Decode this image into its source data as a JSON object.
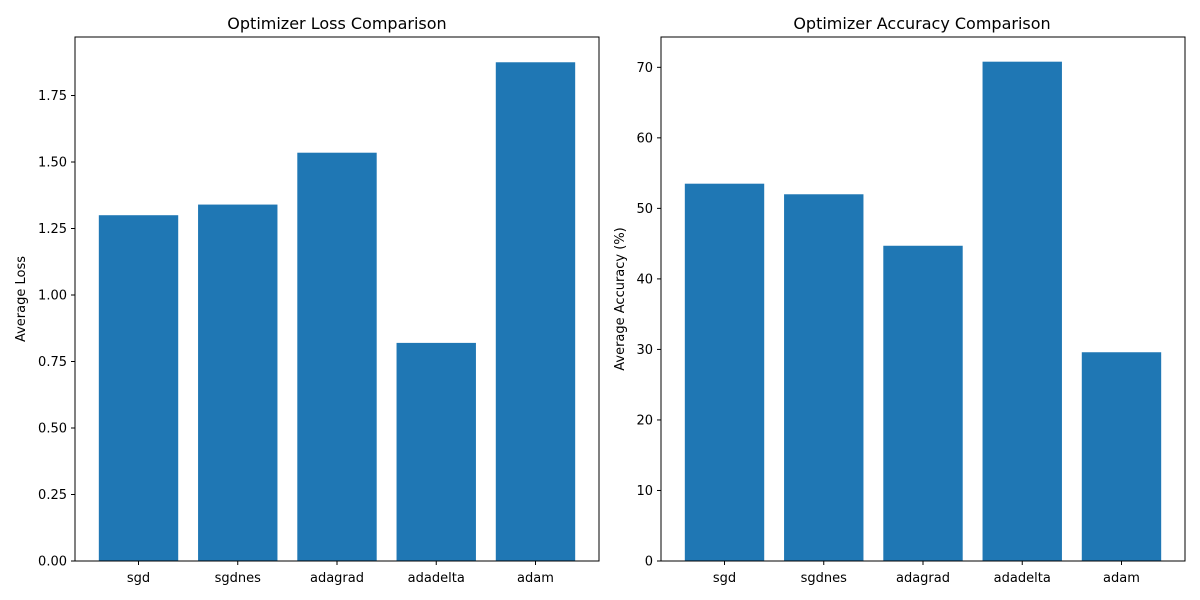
{
  "chart_data": [
    {
      "type": "bar",
      "title": "Optimizer Loss Comparison",
      "xlabel": "",
      "ylabel": "Average Loss",
      "categories": [
        "sgd",
        "sgdnes",
        "adagrad",
        "adadelta",
        "adam"
      ],
      "values": [
        1.3,
        1.34,
        1.535,
        0.82,
        1.875
      ],
      "ylim": [
        0,
        1.97
      ],
      "yticks": [
        0.0,
        0.25,
        0.5,
        0.75,
        1.0,
        1.25,
        1.5,
        1.75
      ],
      "ytick_labels": [
        "0.00",
        "0.25",
        "0.50",
        "0.75",
        "1.00",
        "1.25",
        "1.50",
        "1.75"
      ],
      "bar_color": "#1f77b4",
      "grid": false,
      "legend": "none"
    },
    {
      "type": "bar",
      "title": "Optimizer Accuracy Comparison",
      "xlabel": "",
      "ylabel": "Average Accuracy (%)",
      "categories": [
        "sgd",
        "sgdnes",
        "adagrad",
        "adadelta",
        "adam"
      ],
      "values": [
        53.5,
        52.0,
        44.7,
        70.8,
        29.6
      ],
      "ylim": [
        0,
        74.3
      ],
      "yticks": [
        0,
        10,
        20,
        30,
        40,
        50,
        60,
        70
      ],
      "ytick_labels": [
        "0",
        "10",
        "20",
        "30",
        "40",
        "50",
        "60",
        "70"
      ],
      "bar_color": "#1f77b4",
      "grid": false,
      "legend": "none"
    }
  ]
}
